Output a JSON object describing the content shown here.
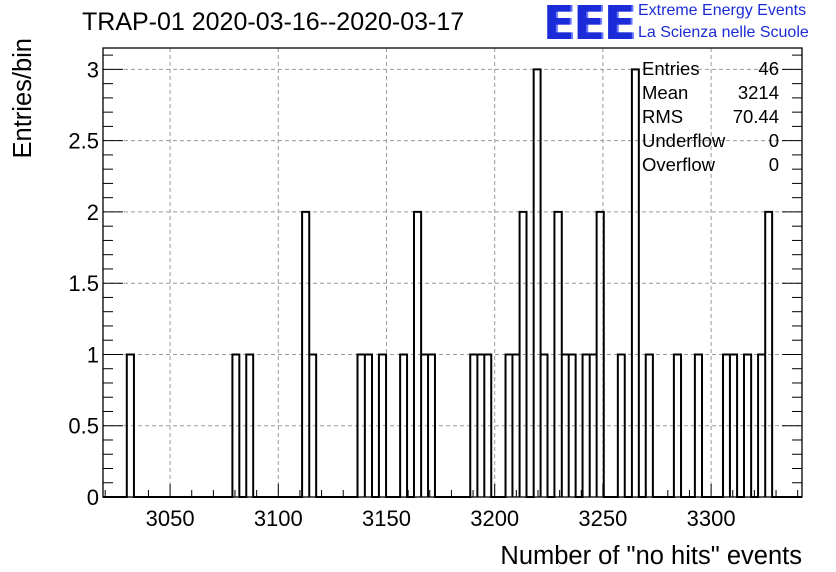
{
  "title": "TRAP-01 2020-03-16--2020-03-17",
  "logo": {
    "text": "EEE",
    "line1": "Extreme Energy Events",
    "line2": "La Scienza nelle Scuole",
    "color": "#1b2bd8"
  },
  "stats": [
    {
      "label": "Entries",
      "value": "46"
    },
    {
      "label": "Mean",
      "value": "3214"
    },
    {
      "label": "RMS",
      "value": "70.44"
    },
    {
      "label": "Underflow",
      "value": "0"
    },
    {
      "label": "Overflow",
      "value": "0"
    }
  ],
  "chart_data": {
    "type": "bar",
    "style": "step-histogram",
    "title": "TRAP-01 2020-03-16--2020-03-17",
    "xlabel": "Number of \"no hits\" events",
    "ylabel": "Entries/bin",
    "xlim": [
      3019,
      3342
    ],
    "ylim": [
      0,
      3.15
    ],
    "bin_width": 3.25,
    "x_ticks": [
      3050,
      3100,
      3150,
      3200,
      3250,
      3300
    ],
    "y_ticks": [
      0,
      0.5,
      1,
      1.5,
      2,
      2.5,
      3
    ],
    "y_tick_labels": [
      "0",
      "0.5",
      "1",
      "1.5",
      "2",
      "2.5",
      "3"
    ],
    "grid": true,
    "bins": [
      {
        "x0": 3030.0,
        "x1": 3033.3,
        "count": 1
      },
      {
        "x0": 3078.8,
        "x1": 3082.0,
        "count": 1
      },
      {
        "x0": 3085.2,
        "x1": 3088.4,
        "count": 1
      },
      {
        "x0": 3111.0,
        "x1": 3114.3,
        "count": 2
      },
      {
        "x0": 3114.3,
        "x1": 3117.5,
        "count": 1
      },
      {
        "x0": 3136.6,
        "x1": 3140.0,
        "count": 1
      },
      {
        "x0": 3140.0,
        "x1": 3143.3,
        "count": 1
      },
      {
        "x0": 3146.5,
        "x1": 3149.8,
        "count": 1
      },
      {
        "x0": 3156.3,
        "x1": 3159.5,
        "count": 1
      },
      {
        "x0": 3162.7,
        "x1": 3166.0,
        "count": 2
      },
      {
        "x0": 3166.0,
        "x1": 3169.2,
        "count": 1
      },
      {
        "x0": 3169.2,
        "x1": 3172.4,
        "count": 1
      },
      {
        "x0": 3188.7,
        "x1": 3192.0,
        "count": 1
      },
      {
        "x0": 3192.0,
        "x1": 3195.2,
        "count": 1
      },
      {
        "x0": 3195.2,
        "x1": 3198.4,
        "count": 1
      },
      {
        "x0": 3205.0,
        "x1": 3208.2,
        "count": 1
      },
      {
        "x0": 3208.2,
        "x1": 3211.5,
        "count": 1
      },
      {
        "x0": 3211.5,
        "x1": 3214.7,
        "count": 2
      },
      {
        "x0": 3218.0,
        "x1": 3221.2,
        "count": 3
      },
      {
        "x0": 3221.2,
        "x1": 3224.4,
        "count": 1
      },
      {
        "x0": 3227.6,
        "x1": 3231.0,
        "count": 2
      },
      {
        "x0": 3231.0,
        "x1": 3234.2,
        "count": 1
      },
      {
        "x0": 3234.2,
        "x1": 3237.4,
        "count": 1
      },
      {
        "x0": 3240.6,
        "x1": 3243.9,
        "count": 1
      },
      {
        "x0": 3243.9,
        "x1": 3247.1,
        "count": 1
      },
      {
        "x0": 3247.1,
        "x1": 3250.4,
        "count": 2
      },
      {
        "x0": 3256.9,
        "x1": 3260.1,
        "count": 1
      },
      {
        "x0": 3263.4,
        "x1": 3266.6,
        "count": 3
      },
      {
        "x0": 3269.8,
        "x1": 3273.1,
        "count": 1
      },
      {
        "x0": 3282.8,
        "x1": 3286.1,
        "count": 1
      },
      {
        "x0": 3292.5,
        "x1": 3295.8,
        "count": 1
      },
      {
        "x0": 3305.5,
        "x1": 3308.7,
        "count": 1
      },
      {
        "x0": 3308.7,
        "x1": 3312.0,
        "count": 1
      },
      {
        "x0": 3315.2,
        "x1": 3318.5,
        "count": 1
      },
      {
        "x0": 3321.7,
        "x1": 3325.0,
        "count": 1
      },
      {
        "x0": 3325.0,
        "x1": 3328.2,
        "count": 2
      }
    ]
  }
}
